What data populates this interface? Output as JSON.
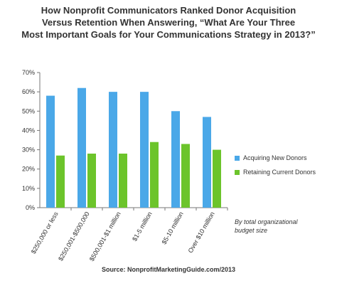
{
  "title_lines": [
    "How Nonprofit Communicators Ranked Donor Acquisition",
    "Versus Retention When Answering, “What Are Your Three",
    "Most Important Goals for Your Communications Strategy in 2013?”"
  ],
  "legend": {
    "acquiring": "Acquiring New Donors",
    "retaining": "Retaining Current Donors"
  },
  "note_lines": [
    "By total organizational",
    "budget size"
  ],
  "source": "Source: NonprofitMarketingGuide.com/2013",
  "colors": {
    "acquiring": "#4aa8e8",
    "retaining": "#6cc42b",
    "axis": "#777777"
  },
  "chart_data": {
    "type": "bar",
    "title": "How Nonprofit Communicators Ranked Donor Acquisition Versus Retention When Answering, “What Are Your Three Most Important Goals for Your Communications Strategy in 2013?”",
    "categories": [
      "$250,000 or less",
      "$250,001-$500,000",
      "$500,001-$1 million",
      "$1-5 million",
      "$5-10 million",
      "Over $10 million"
    ],
    "series": [
      {
        "name": "Acquiring New Donors",
        "values": [
          58,
          62,
          60,
          60,
          50,
          47
        ]
      },
      {
        "name": "Retaining Current Donors",
        "values": [
          27,
          28,
          28,
          34,
          33,
          30
        ]
      }
    ],
    "ylim": [
      0,
      70
    ],
    "yticks": [
      "0%",
      "10%",
      "20%",
      "30%",
      "40%",
      "50%",
      "60%",
      "70%"
    ],
    "legend_position": "right",
    "grid": false
  }
}
